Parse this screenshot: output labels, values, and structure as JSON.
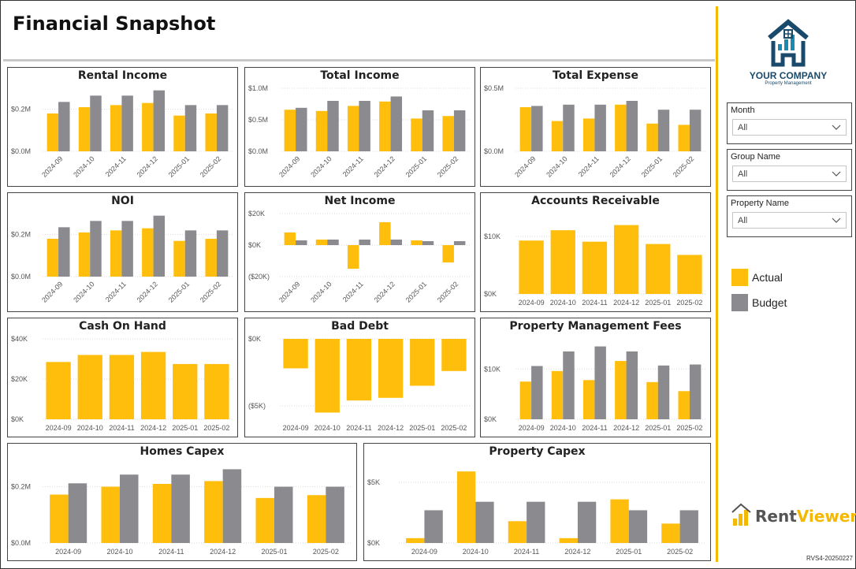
{
  "page": {
    "title": "Financial Snapshot",
    "version": "RVS4-20250227"
  },
  "brand": {
    "company": "YOUR COMPANY",
    "tagline": "Property Management",
    "product_a": "Rent",
    "product_b": "Viewer"
  },
  "colors": {
    "actual": "#FFBE0B",
    "budget": "#8B8B8F",
    "accent": "#F5B800",
    "logo": "#1A4A6B"
  },
  "slicers": [
    {
      "label": "Month",
      "value": "All",
      "icon": "chevron-down-icon"
    },
    {
      "label": "Group Name",
      "value": "All",
      "icon": "chevron-down-icon"
    },
    {
      "label": "Property Name",
      "value": "All",
      "icon": "chevron-down-icon"
    }
  ],
  "legend": {
    "actual": "Actual",
    "budget": "Budget"
  },
  "chart_data": [
    {
      "id": "rental-income",
      "type": "bar",
      "title": "Rental Income",
      "categories": [
        "2024-09",
        "2024-10",
        "2024-11",
        "2024-12",
        "2025-01",
        "2025-02"
      ],
      "series": [
        {
          "name": "Actual",
          "values": [
            0.18,
            0.21,
            0.22,
            0.23,
            0.17,
            0.18
          ]
        },
        {
          "name": "Budget",
          "values": [
            0.235,
            0.265,
            0.265,
            0.29,
            0.22,
            0.22
          ]
        }
      ],
      "ylim": [
        0,
        0.3
      ],
      "ticks": [
        0,
        0.2
      ],
      "tick_labels": [
        "$0.0M",
        "$0.2M"
      ],
      "rotate": true
    },
    {
      "id": "total-income",
      "type": "bar",
      "title": "Total Income",
      "categories": [
        "2024-09",
        "2024-10",
        "2024-11",
        "2024-12",
        "2025-01",
        "2025-02"
      ],
      "series": [
        {
          "name": "Actual",
          "values": [
            0.66,
            0.64,
            0.72,
            0.79,
            0.52,
            0.56
          ]
        },
        {
          "name": "Budget",
          "values": [
            0.69,
            0.8,
            0.8,
            0.87,
            0.65,
            0.65
          ]
        }
      ],
      "ylim": [
        0,
        1.0
      ],
      "ticks": [
        0,
        0.5,
        1.0
      ],
      "tick_labels": [
        "$0.0M",
        "$0.5M",
        "$1.0M"
      ],
      "rotate": true
    },
    {
      "id": "total-expense",
      "type": "bar",
      "title": "Total Expense",
      "categories": [
        "2024-09",
        "2024-10",
        "2024-11",
        "2024-12",
        "2025-01",
        "2025-02"
      ],
      "series": [
        {
          "name": "Actual",
          "values": [
            0.35,
            0.24,
            0.26,
            0.37,
            0.22,
            0.21
          ]
        },
        {
          "name": "Budget",
          "values": [
            0.36,
            0.37,
            0.37,
            0.4,
            0.33,
            0.33
          ]
        }
      ],
      "ylim": [
        0,
        0.5
      ],
      "ticks": [
        0,
        0.5
      ],
      "tick_labels": [
        "$0.0M",
        "$0.5M"
      ],
      "rotate": true
    },
    {
      "id": "noi",
      "type": "bar",
      "title": "NOI",
      "categories": [
        "2024-09",
        "2024-10",
        "2024-11",
        "2024-12",
        "2025-01",
        "2025-02"
      ],
      "series": [
        {
          "name": "Actual",
          "values": [
            0.18,
            0.21,
            0.22,
            0.23,
            0.17,
            0.18
          ]
        },
        {
          "name": "Budget",
          "values": [
            0.235,
            0.265,
            0.265,
            0.29,
            0.22,
            0.22
          ]
        }
      ],
      "ylim": [
        0,
        0.3
      ],
      "ticks": [
        0,
        0.2
      ],
      "tick_labels": [
        "$0.0M",
        "$0.2M"
      ],
      "rotate": true
    },
    {
      "id": "net-income",
      "type": "bar",
      "title": "Net Income",
      "categories": [
        "2024-09",
        "2024-10",
        "2024-11",
        "2024-12",
        "2025-01",
        "2025-02"
      ],
      "series": [
        {
          "name": "Actual",
          "values": [
            8,
            3.5,
            -15,
            14.5,
            3,
            -11
          ]
        },
        {
          "name": "Budget",
          "values": [
            3,
            3.5,
            3.5,
            3.5,
            2.5,
            2.5
          ]
        }
      ],
      "ylim": [
        -20,
        20
      ],
      "ticks": [
        -20,
        0,
        20
      ],
      "tick_labels": [
        "($20K)",
        "$0K",
        "$20K"
      ],
      "rotate": true
    },
    {
      "id": "accounts-receivable",
      "type": "bar",
      "title": "Accounts Receivable",
      "categories": [
        "2024-09",
        "2024-10",
        "2024-11",
        "2024-12",
        "2025-01",
        "2025-02"
      ],
      "series": [
        {
          "name": "Actual",
          "values": [
            9.3,
            11.1,
            9.1,
            12,
            8.7,
            6.8
          ]
        }
      ],
      "ylim": [
        0,
        14
      ],
      "ticks": [
        0,
        10
      ],
      "tick_labels": [
        "$0K",
        "$10K"
      ],
      "rotate": false
    },
    {
      "id": "cash-on-hand",
      "type": "bar",
      "title": "Cash On Hand",
      "categories": [
        "2024-09",
        "2024-10",
        "2024-11",
        "2024-12",
        "2025-01",
        "2025-02"
      ],
      "series": [
        {
          "name": "Actual",
          "values": [
            28.5,
            32,
            32,
            33.5,
            27.5,
            27.5
          ]
        }
      ],
      "ylim": [
        0,
        40
      ],
      "ticks": [
        0,
        20,
        40
      ],
      "tick_labels": [
        "$0K",
        "$20K",
        "$40K"
      ],
      "rotate": false
    },
    {
      "id": "bad-debt",
      "type": "bar",
      "title": "Bad Debt",
      "categories": [
        "2024-09",
        "2024-10",
        "2024-11",
        "2024-12",
        "2025-01",
        "2025-02"
      ],
      "series": [
        {
          "name": "Actual",
          "values": [
            -2.2,
            -5.5,
            -4.6,
            -4.4,
            -3.5,
            -2.4
          ]
        }
      ],
      "ylim": [
        -6,
        0
      ],
      "ticks": [
        -5,
        0
      ],
      "tick_labels": [
        "($5K)",
        "$0K"
      ],
      "rotate": false
    },
    {
      "id": "property-management-fees",
      "type": "bar",
      "title": "Property Management Fees",
      "categories": [
        "2024-09",
        "2024-10",
        "2024-11",
        "2024-12",
        "2025-01",
        "2025-02"
      ],
      "series": [
        {
          "name": "Actual",
          "values": [
            7.5,
            9.6,
            7.8,
            11.6,
            7.4,
            5.6
          ]
        },
        {
          "name": "Budget",
          "values": [
            10.6,
            13.5,
            14.5,
            13.5,
            10.7,
            10.9
          ]
        }
      ],
      "ylim": [
        0,
        16
      ],
      "ticks": [
        0,
        10
      ],
      "tick_labels": [
        "$0K",
        "$10K"
      ],
      "rotate": false
    },
    {
      "id": "homes-capex",
      "type": "bar",
      "title": "Homes Capex",
      "categories": [
        "2024-09",
        "2024-10",
        "2024-11",
        "2024-12",
        "2025-01",
        "2025-02"
      ],
      "series": [
        {
          "name": "Actual",
          "values": [
            0.172,
            0.2,
            0.21,
            0.22,
            0.16,
            0.17
          ]
        },
        {
          "name": "Budget",
          "values": [
            0.212,
            0.243,
            0.243,
            0.262,
            0.2,
            0.2
          ]
        }
      ],
      "ylim": [
        0,
        0.28
      ],
      "ticks": [
        0,
        0.2
      ],
      "tick_labels": [
        "$0.0M",
        "$0.2M"
      ],
      "rotate": false
    },
    {
      "id": "property-capex",
      "type": "bar",
      "title": "Property Capex",
      "categories": [
        "2024-09",
        "2024-10",
        "2024-11",
        "2024-12",
        "2025-01",
        "2025-02"
      ],
      "series": [
        {
          "name": "Actual",
          "values": [
            0.4,
            5.9,
            1.8,
            0.4,
            3.6,
            1.6
          ]
        },
        {
          "name": "Budget",
          "values": [
            2.7,
            3.4,
            3.4,
            3.4,
            2.7,
            2.7
          ]
        }
      ],
      "ylim": [
        0,
        6.5
      ],
      "ticks": [
        0,
        5
      ],
      "tick_labels": [
        "$0K",
        "$5K"
      ],
      "rotate": false
    }
  ]
}
